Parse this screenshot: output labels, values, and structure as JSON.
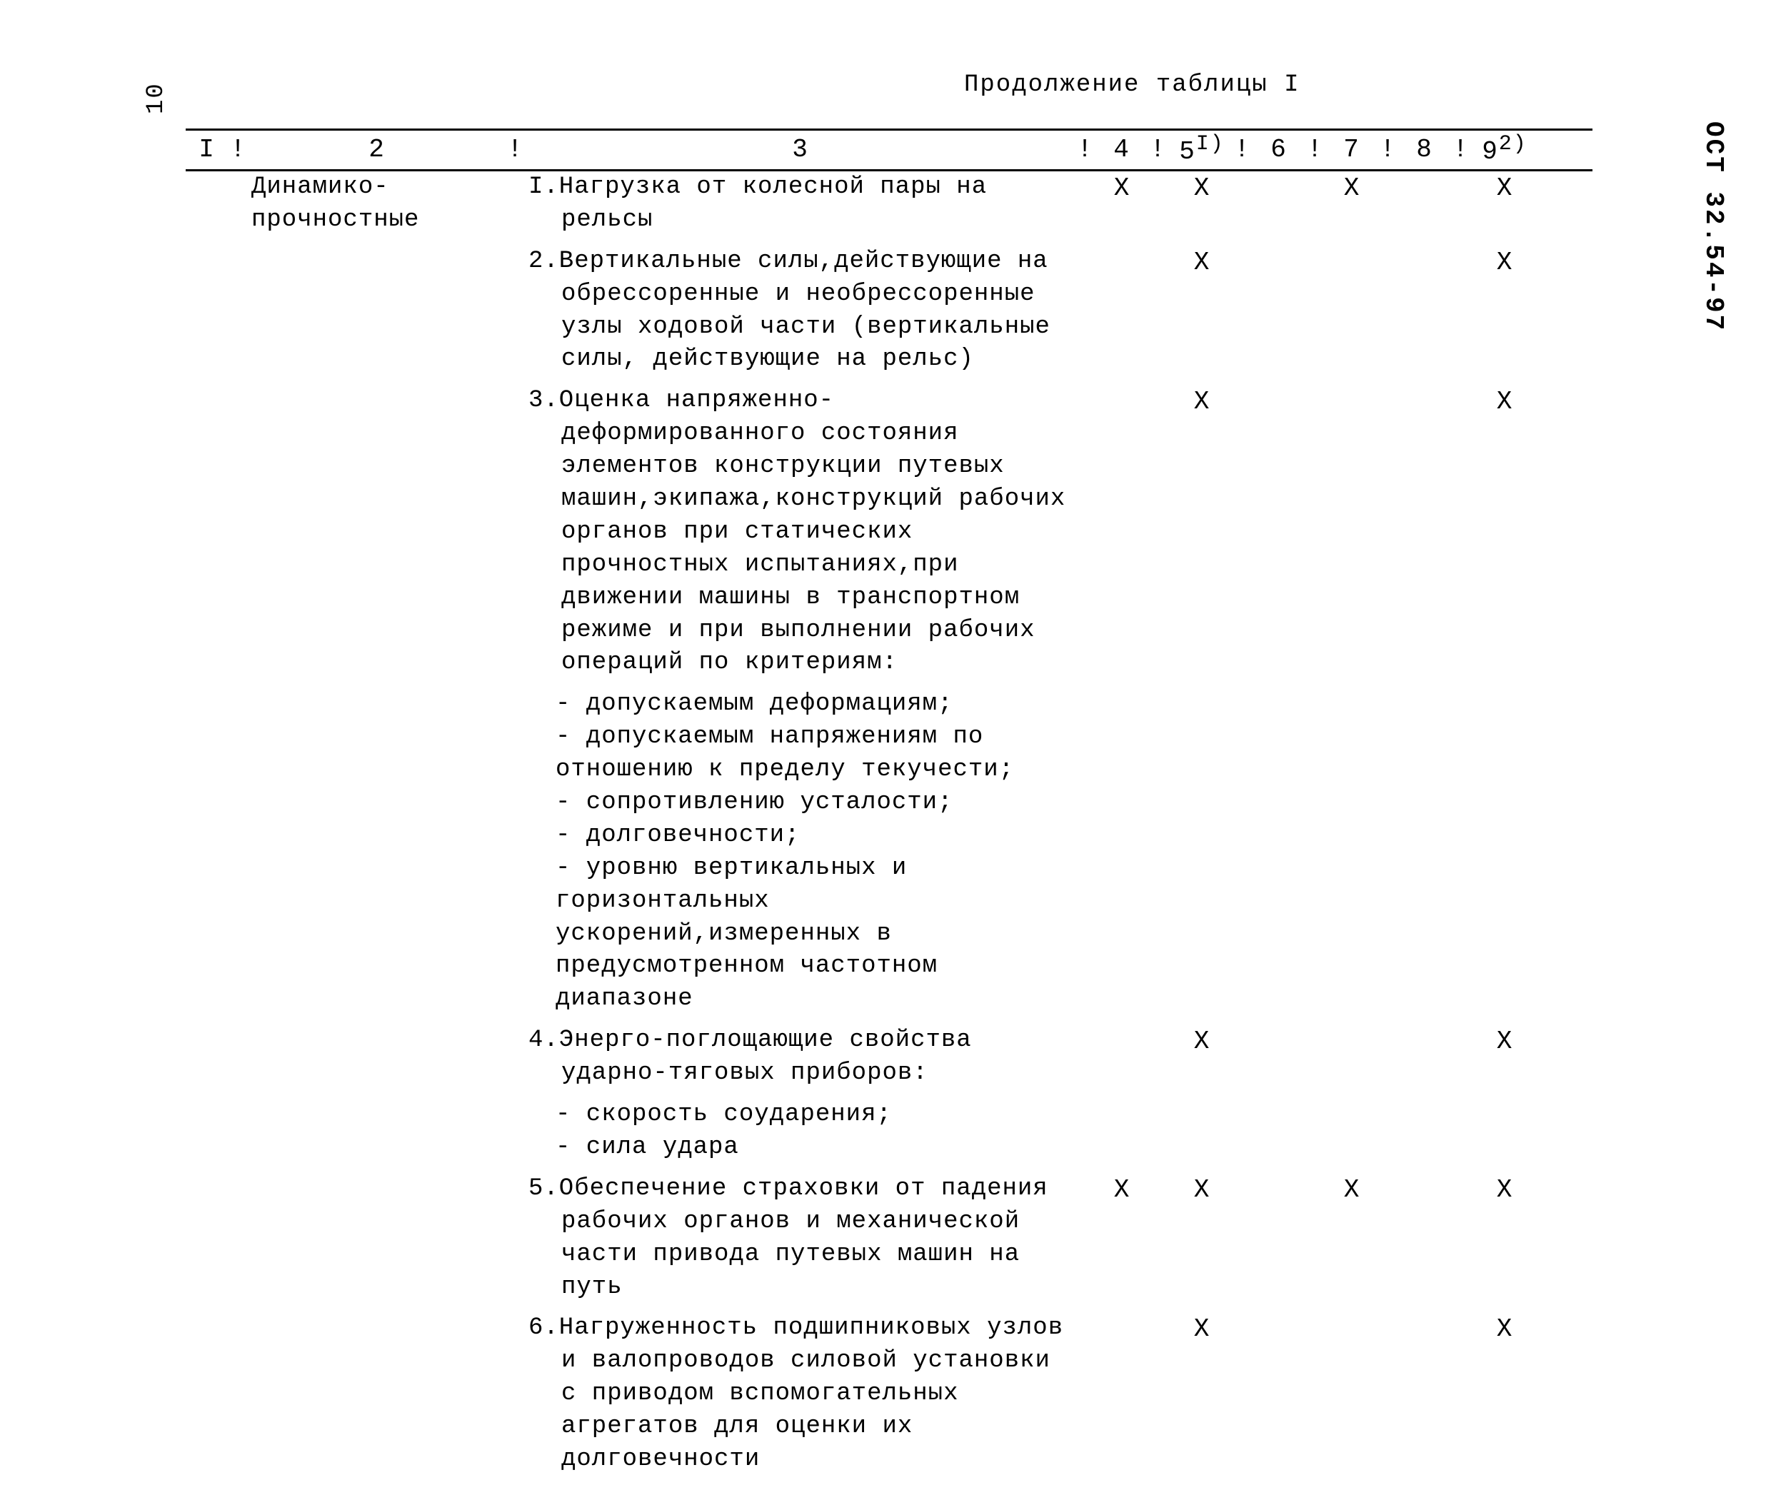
{
  "caption": "Продолжение таблицы I",
  "page_number_left": "10",
  "doc_id_right": "ОСТ 32.54-97",
  "mark_symbol": "Х",
  "separator": "!",
  "columns": {
    "h1": "I",
    "h2": "2",
    "h3": "3",
    "h4": "4",
    "h5": "5",
    "h5_sup": "I)",
    "h6": "6",
    "h7": "7",
    "h8": "8",
    "h9": "9",
    "h9_sup": "2)"
  },
  "row_group_label": "Динамико-прочностные",
  "rows": [
    {
      "text": "I.Нагрузка от колесной пары на рельсы",
      "marks": {
        "c4": true,
        "c5": true,
        "c6": false,
        "c7": true,
        "c8": false,
        "c9": true
      }
    },
    {
      "text": "2.Вертикальные силы,действующие на обрессоренные и необрессоренные узлы ходовой части (вертикальные силы, действующие на рельс)",
      "marks": {
        "c4": false,
        "c5": true,
        "c6": false,
        "c7": false,
        "c8": false,
        "c9": true
      }
    },
    {
      "text": "3.Оценка напряженно-деформированного состояния элементов конструкции путевых машин,экипажа,конструкций рабочих органов при статических прочностных испытаниях,при движении машины в транспортном режиме и при выполнении рабочих операций по критериям:",
      "marks": {
        "c4": false,
        "c5": true,
        "c6": false,
        "c7": false,
        "c8": false,
        "c9": true
      }
    },
    {
      "text_lines": [
        "- допускаемым деформациям;",
        "- допускаемым напряжениям по отношению к пределу текучести;",
        "- сопротивлению усталости;",
        "- долговечности;",
        "- уровню вертикальных и горизонтальных ускорений,измеренных в предусмотренном частотном диапазоне"
      ],
      "marks": {
        "c4": false,
        "c5": false,
        "c6": false,
        "c7": false,
        "c8": false,
        "c9": false
      }
    },
    {
      "text": "4.Энерго-поглощающие свойства ударно-тяговых приборов:",
      "marks": {
        "c4": false,
        "c5": true,
        "c6": false,
        "c7": false,
        "c8": false,
        "c9": true
      }
    },
    {
      "text_lines": [
        "- скорость соударения;",
        "- сила удара"
      ],
      "marks": {
        "c4": false,
        "c5": false,
        "c6": false,
        "c7": false,
        "c8": false,
        "c9": false
      }
    },
    {
      "text": "5.Обеспечение страховки от падения рабочих органов и механической части привода путевых машин на путь",
      "marks": {
        "c4": true,
        "c5": true,
        "c6": false,
        "c7": true,
        "c8": false,
        "c9": true
      }
    },
    {
      "text": "6.Нагруженность подшипниковых узлов и валопроводов силовой установки с приводом вспомогательных агрегатов для оценки их долговечности",
      "marks": {
        "c4": false,
        "c5": true,
        "c6": false,
        "c7": false,
        "c8": false,
        "c9": true
      }
    }
  ]
}
